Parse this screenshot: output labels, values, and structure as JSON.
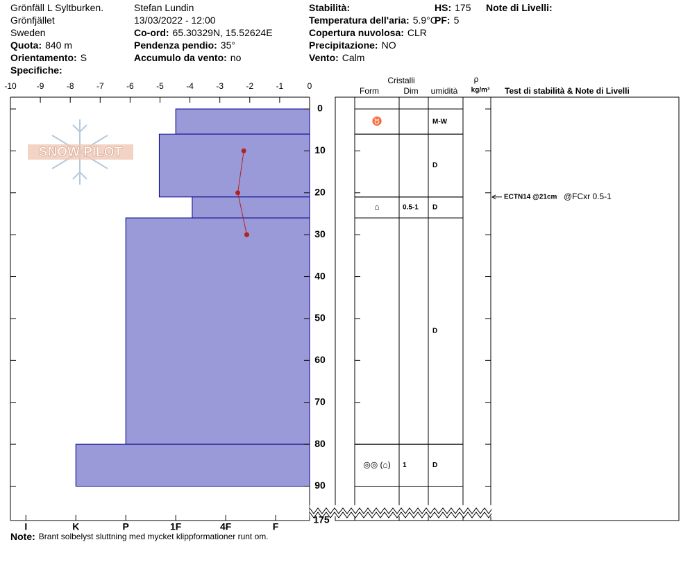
{
  "header": {
    "col1": [
      {
        "value": "Grönfäll L Syltburken."
      },
      {
        "value": "Grönfjället"
      },
      {
        "value": "Sweden"
      },
      {
        "label": "Quota:",
        "value": "840 m"
      },
      {
        "label": "Orientamento:",
        "value": "S"
      },
      {
        "label": "Specifiche:"
      }
    ],
    "col2": [
      {
        "value": "Stefan Lundin"
      },
      {
        "value": "13/03/2022 - 12:00"
      },
      {
        "label": "Co-ord:",
        "value": "65.30329N, 15.52624E"
      },
      {
        "label": "Pendenza pendio:",
        "value": "35°"
      },
      {
        "label": "Accumulo da vento:",
        "value": "no"
      }
    ],
    "col3": [
      {
        "label": "Stabilità:"
      },
      {
        "label": "Temperatura dell'aria:",
        "value": "5.9°C"
      },
      {
        "label": "Copertura nuvolosa:",
        "value": "CLR"
      },
      {
        "label": "Precipitazione:",
        "value": "NO"
      },
      {
        "label": "Vento:",
        "value": "Calm"
      }
    ],
    "col4": [
      {
        "label": "HS:",
        "value": 175
      },
      {
        "label": "PF:",
        "value": 5
      }
    ],
    "col5": [
      {
        "label": "Note di Livelli:"
      }
    ]
  },
  "logo": "SNOW PILOT",
  "chart_data": {
    "type": "snow-profile",
    "ylim": [
      0,
      98.2
    ],
    "yticks": [
      0,
      10,
      20,
      30,
      40,
      50,
      60,
      70,
      80,
      90
    ],
    "xlim": [
      -10,
      0
    ],
    "xticks": [
      -10,
      -9,
      -8,
      -7,
      -6,
      -5,
      -4,
      -3,
      -2,
      -1,
      0
    ],
    "x2lim": [
      6.31,
      0.32
    ],
    "x2ticks": [
      {
        "value": 6,
        "label": "I"
      },
      {
        "value": 5,
        "label": "K"
      },
      {
        "value": 4,
        "label": "P"
      },
      {
        "value": 3,
        "label": "1F"
      },
      {
        "value": 2,
        "label": "4F"
      },
      {
        "value": 1,
        "label": "F"
      }
    ],
    "layers": {
      "top": [
        0,
        6,
        21,
        26,
        80
      ],
      "bottom": [
        6,
        21,
        26,
        80,
        90
      ],
      "hardness": [
        3,
        3.33,
        2.67,
        4,
        5
      ],
      "color": "#9a9ad8",
      "edge": "#00008b"
    },
    "temperature": {
      "depth": [
        10,
        20,
        30
      ],
      "values": [
        -2.2,
        -2.4,
        -2.1
      ],
      "color": "#b22222"
    },
    "table": {
      "headers": {
        "group": "Cristalli",
        "form": "Form",
        "dim": "Dim",
        "moisture": "umidità",
        "density": "ρ",
        "density_unit": "kg/m³",
        "test": "Test di stabilità & Note di Livelli"
      },
      "form": [
        "♉",
        null,
        "⌂",
        null,
        "◎◎ (⌂)"
      ],
      "dim": [
        null,
        null,
        "0.5-1",
        null,
        "1"
      ],
      "moisture": [
        "M-W",
        "D",
        "D",
        "D",
        "D"
      ]
    },
    "test": {
      "depth": 21,
      "result": "ECTN14 @21cm",
      "detail": "@FCxr 0.5-1"
    }
  },
  "note": {
    "label": "Note:",
    "value": "Brant solbelyst sluttning med mycket klippformationer runt om."
  }
}
